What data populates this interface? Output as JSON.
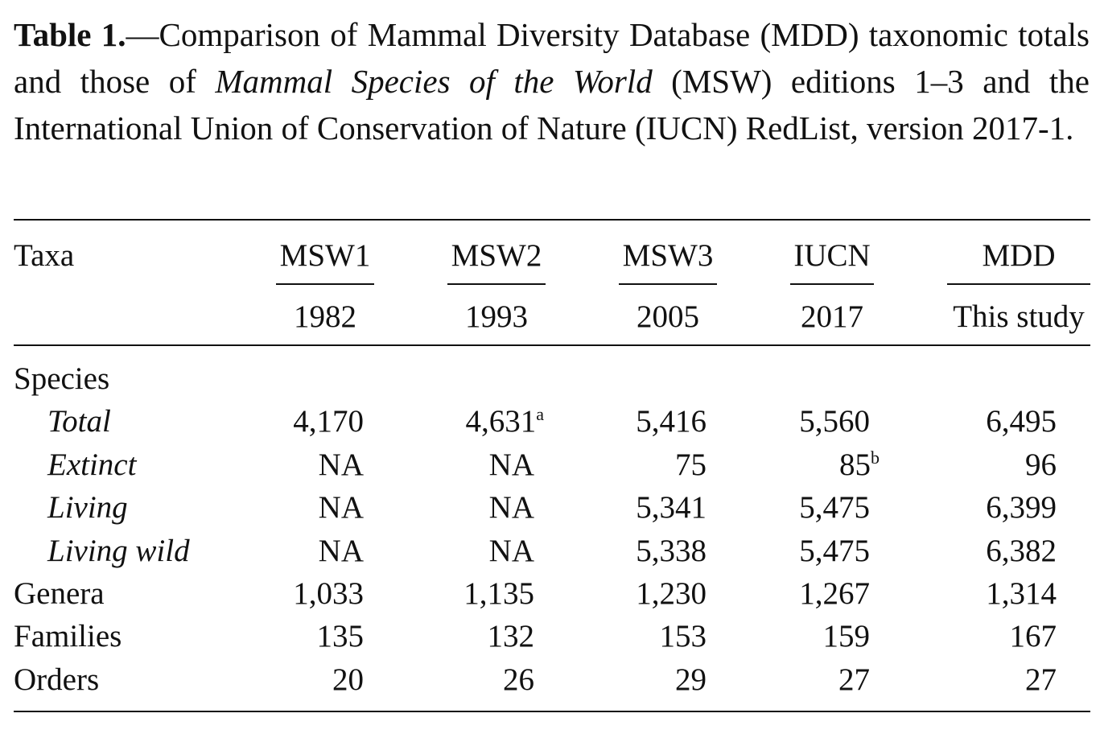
{
  "caption": {
    "label": "Table 1.",
    "dash": "—",
    "text_before": "Comparison of Mammal Diversity Database (MDD) taxonomic totals and those of ",
    "italic": "Mammal Species of the World",
    "text_after": " (MSW) editions 1–3 and the International Union of Conservation of Nature (IUCN) RedList, version 2017-1."
  },
  "header": {
    "taxa": "Taxa",
    "columns": [
      {
        "name": "MSW1",
        "year": "1982"
      },
      {
        "name": "MSW2",
        "year": "1993"
      },
      {
        "name": "MSW3",
        "year": "2005"
      },
      {
        "name": "IUCN",
        "year": "2017"
      },
      {
        "name": "MDD",
        "year": "This study"
      }
    ]
  },
  "rows": [
    {
      "label": "Species",
      "italic": false,
      "values": [
        "",
        "",
        "",
        "",
        ""
      ],
      "notes": [
        "",
        "",
        "",
        "",
        ""
      ]
    },
    {
      "label": "Total",
      "italic": true,
      "values": [
        "4,170",
        "4,631",
        "5,416",
        "5,560",
        "6,495"
      ],
      "notes": [
        "",
        "a",
        "",
        "",
        ""
      ]
    },
    {
      "label": "Extinct",
      "italic": true,
      "values": [
        "NA",
        "NA",
        "75",
        "85",
        "96"
      ],
      "notes": [
        "",
        "",
        "",
        "b",
        ""
      ]
    },
    {
      "label": "Living",
      "italic": true,
      "values": [
        "NA",
        "NA",
        "5,341",
        "5,475",
        "6,399"
      ],
      "notes": [
        "",
        "",
        "",
        "",
        ""
      ]
    },
    {
      "label": "Living wild",
      "italic": true,
      "values": [
        "NA",
        "NA",
        "5,338",
        "5,475",
        "6,382"
      ],
      "notes": [
        "",
        "",
        "",
        "",
        ""
      ]
    },
    {
      "label": "Genera",
      "italic": false,
      "values": [
        "1,033",
        "1,135",
        "1,230",
        "1,267",
        "1,314"
      ],
      "notes": [
        "",
        "",
        "",
        "",
        ""
      ]
    },
    {
      "label": "Families",
      "italic": false,
      "values": [
        "135",
        "132",
        "153",
        "159",
        "167"
      ],
      "notes": [
        "",
        "",
        "",
        "",
        ""
      ]
    },
    {
      "label": "Orders",
      "italic": false,
      "values": [
        "20",
        "26",
        "29",
        "27",
        "27"
      ],
      "notes": [
        "",
        "",
        "",
        "",
        ""
      ]
    }
  ]
}
